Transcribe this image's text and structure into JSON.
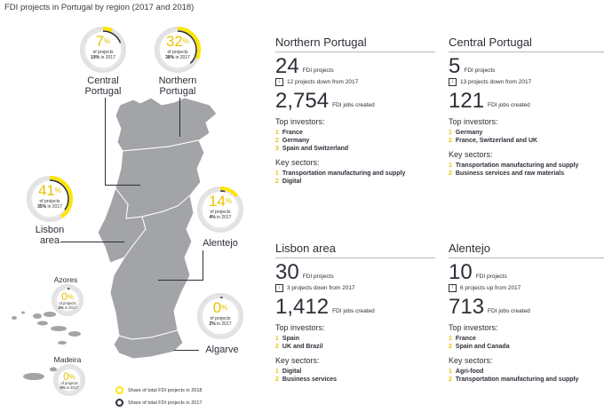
{
  "title": "FDI projects in Portugal by region (2017 and 2018)",
  "colors": {
    "accent": "#ffe600",
    "map": "#a2a4a8",
    "dark": "#2e2e38"
  },
  "circles": {
    "central": {
      "pct": "7",
      "unit": "%",
      "line1": "of projects",
      "line2_val": "19%",
      "line2_text": " in 2017",
      "share_2018": 0.07,
      "share_2017": 0.19
    },
    "northern": {
      "pct": "32",
      "unit": "%",
      "line1": "of projects",
      "line2_val": "38%",
      "line2_text": " in 2017",
      "share_2018": 0.32,
      "share_2017": 0.38
    },
    "lisbon": {
      "pct": "41",
      "unit": "%",
      "line1": "of projects",
      "line2_val": "35%",
      "line2_text": " in 2017",
      "share_2018": 0.41,
      "share_2017": 0.35
    },
    "alentejo": {
      "pct": "14",
      "unit": "%",
      "line1": "of projects",
      "line2_val": "4%",
      "line2_text": " in 2017",
      "share_2018": 0.14,
      "share_2017": 0.04
    },
    "algarve": {
      "pct": "0",
      "unit": "%",
      "line1": "of projects",
      "line2_val": "2%",
      "line2_text": " in 2017",
      "share_2018": 0.0,
      "share_2017": 0.02
    },
    "azores": {
      "pct": "0",
      "unit": "%",
      "line1": "of projects",
      "line2_val": "3%",
      "line2_text": " in 2017",
      "share_2018": 0.0,
      "share_2017": 0.03
    },
    "madeira": {
      "pct": "0",
      "unit": "%",
      "line1": "of projects",
      "line2_val": "0%",
      "line2_text": " in 2017",
      "share_2018": 0.0,
      "share_2017": 0.0
    }
  },
  "region_labels": {
    "central_l1": "Central",
    "central_l2": "Portugal",
    "northern_l1": "Northern",
    "northern_l2": "Portugal",
    "lisbon_l1": "Lisbon",
    "lisbon_l2": "area",
    "alentejo": "Alentejo",
    "algarve": "Algarve",
    "azores": "Azores",
    "madeira": "Madeira"
  },
  "legend": {
    "y2018": "Share of total FDI projects in 2018",
    "y2017": "Share of total FDI projects in 2017"
  },
  "panels": {
    "northern": {
      "title": "Northern Portugal",
      "projects": "24",
      "projects_label": "FDI projects",
      "arrow": "↓",
      "change": "12 projects down from 2017",
      "jobs": "2,754",
      "jobs_label": "FDI jobs created",
      "investors_head": "Top investors:",
      "investors": [
        "France",
        "Germany",
        "Spain and Switzerland"
      ],
      "sectors_head": "Key sectors:",
      "sectors": [
        "Transportation manufacturing and supply",
        "Digital"
      ]
    },
    "central": {
      "title": "Central Portugal",
      "projects": "5",
      "projects_label": "FDI projects",
      "arrow": "↓",
      "change": "13 projects down from 2017",
      "jobs": "121",
      "jobs_label": "FDI jobs created",
      "investors_head": "Top investors:",
      "investors": [
        "Germany",
        "France, Switzerland and UK"
      ],
      "sectors_head": "Key sectors:",
      "sectors": [
        "Transportation manufacturing and supply",
        "Business services and raw materials"
      ]
    },
    "lisbon": {
      "title": "Lisbon area",
      "projects": "30",
      "projects_label": "FDI projects",
      "arrow": "↓",
      "change": "3 projects down from 2017",
      "jobs": "1,412",
      "jobs_label": "FDI jobs created",
      "investors_head": "Top investors:",
      "investors": [
        "Spain",
        "UK and Brazil"
      ],
      "sectors_head": "Key sectors:",
      "sectors": [
        "Digital",
        "Business services"
      ]
    },
    "alentejo": {
      "title": "Alentejo",
      "projects": "10",
      "projects_label": "FDI projects",
      "arrow": "↑",
      "change": "6 projects up from 2017",
      "jobs": "713",
      "jobs_label": "FDI jobs created",
      "investors_head": "Top investors:",
      "investors": [
        "France",
        "Spain and Canada"
      ],
      "sectors_head": "Key sectors:",
      "sectors": [
        "Agri-food",
        "Transportation manufacturing and supply"
      ]
    }
  }
}
